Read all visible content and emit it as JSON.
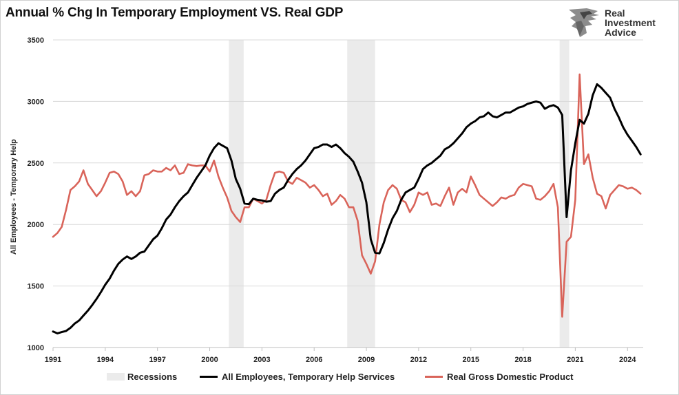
{
  "chart_data": {
    "type": "line",
    "title": "Annual % Chg In Temporary Employment VS. Real GDP",
    "ylabel": "All Employees - Temporary Help",
    "ylim": [
      1000,
      3500
    ],
    "yticks": [
      1000,
      1500,
      2000,
      2500,
      3000,
      3500
    ],
    "xlim": [
      1991.0,
      2024.9
    ],
    "xticks": [
      1991,
      1994,
      1997,
      2000,
      2003,
      2006,
      2009,
      2012,
      2015,
      2018,
      2021,
      2024
    ],
    "recessions": [
      [
        2001.1,
        2001.95
      ],
      [
        2007.9,
        2009.5
      ],
      [
        2020.1,
        2020.65
      ]
    ],
    "legend": [
      "Recessions",
      "All Employees, Temporary Help Services",
      "Real Gross Domestic Product"
    ],
    "series": [
      {
        "name": "All Employees, Temporary Help Services",
        "color": "#000000",
        "points": [
          [
            1991.0,
            1130
          ],
          [
            1991.25,
            1115
          ],
          [
            1991.5,
            1125
          ],
          [
            1991.75,
            1135
          ],
          [
            1992.0,
            1160
          ],
          [
            1992.25,
            1195
          ],
          [
            1992.5,
            1220
          ],
          [
            1992.75,
            1260
          ],
          [
            1993.0,
            1300
          ],
          [
            1993.25,
            1345
          ],
          [
            1993.5,
            1395
          ],
          [
            1993.75,
            1450
          ],
          [
            1994.0,
            1510
          ],
          [
            1994.25,
            1560
          ],
          [
            1994.5,
            1625
          ],
          [
            1994.75,
            1680
          ],
          [
            1995.0,
            1715
          ],
          [
            1995.25,
            1740
          ],
          [
            1995.5,
            1720
          ],
          [
            1995.75,
            1740
          ],
          [
            1996.0,
            1770
          ],
          [
            1996.25,
            1780
          ],
          [
            1996.5,
            1830
          ],
          [
            1996.75,
            1880
          ],
          [
            1997.0,
            1910
          ],
          [
            1997.25,
            1970
          ],
          [
            1997.5,
            2040
          ],
          [
            1997.75,
            2080
          ],
          [
            1998.0,
            2140
          ],
          [
            1998.25,
            2190
          ],
          [
            1998.5,
            2230
          ],
          [
            1998.75,
            2260
          ],
          [
            1999.0,
            2320
          ],
          [
            1999.25,
            2380
          ],
          [
            1999.5,
            2430
          ],
          [
            1999.75,
            2480
          ],
          [
            2000.0,
            2560
          ],
          [
            2000.25,
            2620
          ],
          [
            2000.5,
            2660
          ],
          [
            2000.75,
            2640
          ],
          [
            2001.0,
            2620
          ],
          [
            2001.25,
            2520
          ],
          [
            2001.5,
            2370
          ],
          [
            2001.75,
            2290
          ],
          [
            2002.0,
            2170
          ],
          [
            2002.25,
            2165
          ],
          [
            2002.5,
            2210
          ],
          [
            2002.75,
            2200
          ],
          [
            2003.0,
            2195
          ],
          [
            2003.25,
            2185
          ],
          [
            2003.5,
            2190
          ],
          [
            2003.75,
            2250
          ],
          [
            2004.0,
            2280
          ],
          [
            2004.25,
            2300
          ],
          [
            2004.5,
            2360
          ],
          [
            2004.75,
            2410
          ],
          [
            2005.0,
            2450
          ],
          [
            2005.25,
            2480
          ],
          [
            2005.5,
            2520
          ],
          [
            2005.75,
            2570
          ],
          [
            2006.0,
            2620
          ],
          [
            2006.25,
            2630
          ],
          [
            2006.5,
            2650
          ],
          [
            2006.75,
            2650
          ],
          [
            2007.0,
            2630
          ],
          [
            2007.25,
            2650
          ],
          [
            2007.5,
            2620
          ],
          [
            2007.75,
            2580
          ],
          [
            2008.0,
            2550
          ],
          [
            2008.25,
            2510
          ],
          [
            2008.5,
            2430
          ],
          [
            2008.75,
            2340
          ],
          [
            2009.0,
            2180
          ],
          [
            2009.25,
            1880
          ],
          [
            2009.5,
            1770
          ],
          [
            2009.75,
            1765
          ],
          [
            2010.0,
            1850
          ],
          [
            2010.25,
            1960
          ],
          [
            2010.5,
            2050
          ],
          [
            2010.75,
            2110
          ],
          [
            2011.0,
            2200
          ],
          [
            2011.25,
            2260
          ],
          [
            2011.5,
            2280
          ],
          [
            2011.75,
            2300
          ],
          [
            2012.0,
            2370
          ],
          [
            2012.25,
            2450
          ],
          [
            2012.5,
            2480
          ],
          [
            2012.75,
            2500
          ],
          [
            2013.0,
            2530
          ],
          [
            2013.25,
            2560
          ],
          [
            2013.5,
            2610
          ],
          [
            2013.75,
            2630
          ],
          [
            2014.0,
            2660
          ],
          [
            2014.25,
            2700
          ],
          [
            2014.5,
            2740
          ],
          [
            2014.75,
            2790
          ],
          [
            2015.0,
            2820
          ],
          [
            2015.25,
            2840
          ],
          [
            2015.5,
            2870
          ],
          [
            2015.75,
            2880
          ],
          [
            2016.0,
            2910
          ],
          [
            2016.25,
            2880
          ],
          [
            2016.5,
            2870
          ],
          [
            2016.75,
            2890
          ],
          [
            2017.0,
            2910
          ],
          [
            2017.25,
            2910
          ],
          [
            2017.5,
            2930
          ],
          [
            2017.75,
            2950
          ],
          [
            2018.0,
            2960
          ],
          [
            2018.25,
            2980
          ],
          [
            2018.5,
            2990
          ],
          [
            2018.75,
            3000
          ],
          [
            2019.0,
            2990
          ],
          [
            2019.25,
            2940
          ],
          [
            2019.5,
            2960
          ],
          [
            2019.75,
            2970
          ],
          [
            2020.0,
            2950
          ],
          [
            2020.25,
            2890
          ],
          [
            2020.5,
            2060
          ],
          [
            2020.75,
            2440
          ],
          [
            2021.0,
            2660
          ],
          [
            2021.25,
            2850
          ],
          [
            2021.5,
            2820
          ],
          [
            2021.75,
            2900
          ],
          [
            2022.0,
            3050
          ],
          [
            2022.25,
            3140
          ],
          [
            2022.5,
            3110
          ],
          [
            2022.75,
            3070
          ],
          [
            2023.0,
            3030
          ],
          [
            2023.25,
            2940
          ],
          [
            2023.5,
            2870
          ],
          [
            2023.75,
            2790
          ],
          [
            2024.0,
            2730
          ],
          [
            2024.25,
            2680
          ],
          [
            2024.5,
            2630
          ],
          [
            2024.75,
            2570
          ],
          [
            2025.0,
            2545
          ],
          [
            2025.25,
            2540
          ]
        ]
      },
      {
        "name": "Real Gross Domestic Product",
        "color": "#d9645a",
        "points": [
          [
            1991.0,
            1900
          ],
          [
            1991.25,
            1930
          ],
          [
            1991.5,
            1980
          ],
          [
            1991.75,
            2120
          ],
          [
            1992.0,
            2280
          ],
          [
            1992.25,
            2310
          ],
          [
            1992.5,
            2350
          ],
          [
            1992.75,
            2440
          ],
          [
            1993.0,
            2330
          ],
          [
            1993.25,
            2280
          ],
          [
            1993.5,
            2230
          ],
          [
            1993.75,
            2270
          ],
          [
            1994.0,
            2340
          ],
          [
            1994.25,
            2420
          ],
          [
            1994.5,
            2430
          ],
          [
            1994.75,
            2410
          ],
          [
            1995.0,
            2350
          ],
          [
            1995.25,
            2240
          ],
          [
            1995.5,
            2270
          ],
          [
            1995.75,
            2230
          ],
          [
            1996.0,
            2270
          ],
          [
            1996.25,
            2400
          ],
          [
            1996.5,
            2410
          ],
          [
            1996.75,
            2440
          ],
          [
            1997.0,
            2430
          ],
          [
            1997.25,
            2430
          ],
          [
            1997.5,
            2460
          ],
          [
            1997.75,
            2440
          ],
          [
            1998.0,
            2480
          ],
          [
            1998.25,
            2410
          ],
          [
            1998.5,
            2420
          ],
          [
            1998.75,
            2490
          ],
          [
            1999.0,
            2480
          ],
          [
            1999.25,
            2475
          ],
          [
            1999.5,
            2480
          ],
          [
            1999.75,
            2480
          ],
          [
            2000.0,
            2430
          ],
          [
            2000.25,
            2520
          ],
          [
            2000.5,
            2390
          ],
          [
            2000.75,
            2300
          ],
          [
            2001.0,
            2220
          ],
          [
            2001.25,
            2110
          ],
          [
            2001.5,
            2060
          ],
          [
            2001.75,
            2020
          ],
          [
            2002.0,
            2140
          ],
          [
            2002.25,
            2140
          ],
          [
            2002.5,
            2210
          ],
          [
            2002.75,
            2190
          ],
          [
            2003.0,
            2170
          ],
          [
            2003.25,
            2200
          ],
          [
            2003.5,
            2320
          ],
          [
            2003.75,
            2420
          ],
          [
            2004.0,
            2430
          ],
          [
            2004.25,
            2420
          ],
          [
            2004.5,
            2350
          ],
          [
            2004.75,
            2330
          ],
          [
            2005.0,
            2380
          ],
          [
            2005.25,
            2360
          ],
          [
            2005.5,
            2340
          ],
          [
            2005.75,
            2300
          ],
          [
            2006.0,
            2320
          ],
          [
            2006.25,
            2280
          ],
          [
            2006.5,
            2230
          ],
          [
            2006.75,
            2250
          ],
          [
            2007.0,
            2160
          ],
          [
            2007.25,
            2190
          ],
          [
            2007.5,
            2240
          ],
          [
            2007.75,
            2210
          ],
          [
            2008.0,
            2140
          ],
          [
            2008.25,
            2140
          ],
          [
            2008.5,
            2030
          ],
          [
            2008.75,
            1750
          ],
          [
            2009.0,
            1680
          ],
          [
            2009.25,
            1600
          ],
          [
            2009.5,
            1700
          ],
          [
            2009.75,
            2000
          ],
          [
            2010.0,
            2180
          ],
          [
            2010.25,
            2280
          ],
          [
            2010.5,
            2320
          ],
          [
            2010.75,
            2290
          ],
          [
            2011.0,
            2200
          ],
          [
            2011.25,
            2180
          ],
          [
            2011.5,
            2100
          ],
          [
            2011.75,
            2160
          ],
          [
            2012.0,
            2260
          ],
          [
            2012.25,
            2240
          ],
          [
            2012.5,
            2260
          ],
          [
            2012.75,
            2160
          ],
          [
            2013.0,
            2170
          ],
          [
            2013.25,
            2150
          ],
          [
            2013.5,
            2230
          ],
          [
            2013.75,
            2300
          ],
          [
            2014.0,
            2160
          ],
          [
            2014.25,
            2260
          ],
          [
            2014.5,
            2290
          ],
          [
            2014.75,
            2260
          ],
          [
            2015.0,
            2390
          ],
          [
            2015.25,
            2320
          ],
          [
            2015.5,
            2240
          ],
          [
            2015.75,
            2210
          ],
          [
            2016.0,
            2180
          ],
          [
            2016.25,
            2150
          ],
          [
            2016.5,
            2180
          ],
          [
            2016.75,
            2220
          ],
          [
            2017.0,
            2210
          ],
          [
            2017.25,
            2230
          ],
          [
            2017.5,
            2240
          ],
          [
            2017.75,
            2300
          ],
          [
            2018.0,
            2330
          ],
          [
            2018.25,
            2320
          ],
          [
            2018.5,
            2310
          ],
          [
            2018.75,
            2210
          ],
          [
            2019.0,
            2200
          ],
          [
            2019.25,
            2230
          ],
          [
            2019.5,
            2270
          ],
          [
            2019.75,
            2330
          ],
          [
            2020.0,
            2140
          ],
          [
            2020.25,
            1250
          ],
          [
            2020.5,
            1860
          ],
          [
            2020.75,
            1900
          ],
          [
            2021.0,
            2200
          ],
          [
            2021.25,
            3220
          ],
          [
            2021.5,
            2490
          ],
          [
            2021.75,
            2570
          ],
          [
            2022.0,
            2380
          ],
          [
            2022.25,
            2250
          ],
          [
            2022.5,
            2230
          ],
          [
            2022.75,
            2130
          ],
          [
            2023.0,
            2240
          ],
          [
            2023.25,
            2280
          ],
          [
            2023.5,
            2320
          ],
          [
            2023.75,
            2310
          ],
          [
            2024.0,
            2290
          ],
          [
            2024.25,
            2300
          ],
          [
            2024.5,
            2280
          ],
          [
            2024.75,
            2250
          ],
          [
            2025.0,
            2210
          ]
        ]
      }
    ]
  },
  "logo": {
    "lines": [
      "Real",
      "Investment",
      "Advice"
    ],
    "icon": "eagle-icon"
  }
}
